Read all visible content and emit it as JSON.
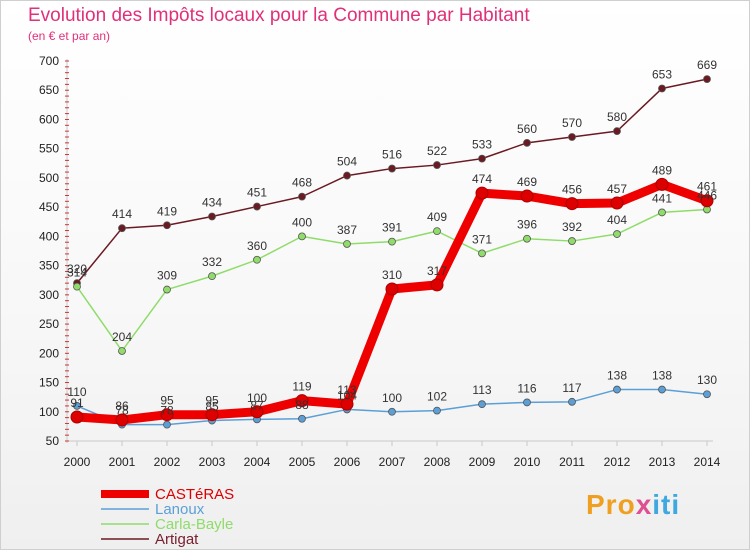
{
  "title": "Evolution des Impôts locaux pour la Commune par Habitant",
  "subtitle": "(en € et par an)",
  "logo": {
    "p1": "Pro",
    "p2": "x",
    "p3": "iti"
  },
  "chart_data": {
    "type": "line",
    "title": "Evolution des Impôts locaux pour la Commune par Habitant",
    "ylabel": "(en € et par an)",
    "xlabel": "",
    "ylim": [
      50,
      700
    ],
    "yticks": [
      50,
      100,
      150,
      200,
      250,
      300,
      350,
      400,
      450,
      500,
      550,
      600,
      650,
      700
    ],
    "x": [
      "2000",
      "2001",
      "2002",
      "2003",
      "2004",
      "2005",
      "2006",
      "2007",
      "2008",
      "2009",
      "2010",
      "2011",
      "2012",
      "2013",
      "2014"
    ],
    "grid": false,
    "legend_position": "bottom-left",
    "series": [
      {
        "name": "Artigat",
        "color": "#6b1a22",
        "values": [
          320,
          414,
          419,
          434,
          451,
          468,
          504,
          516,
          522,
          533,
          560,
          570,
          580,
          653,
          669
        ]
      },
      {
        "name": "Carla-Bayle",
        "color": "#8fdc6a",
        "values": [
          314,
          204,
          309,
          332,
          360,
          400,
          387,
          391,
          409,
          371,
          396,
          392,
          404,
          441,
          446
        ]
      },
      {
        "name": "Lanoux",
        "color": "#5b9fd6",
        "values": [
          110,
          78,
          78,
          85,
          87,
          88,
          104,
          100,
          102,
          113,
          116,
          117,
          138,
          138,
          130
        ]
      },
      {
        "name": "CASTéRAS",
        "color": "#ee0000",
        "values": [
          91,
          86,
          95,
          95,
          100,
          119,
          113,
          310,
          317,
          474,
          469,
          456,
          457,
          489,
          461
        ]
      }
    ]
  }
}
